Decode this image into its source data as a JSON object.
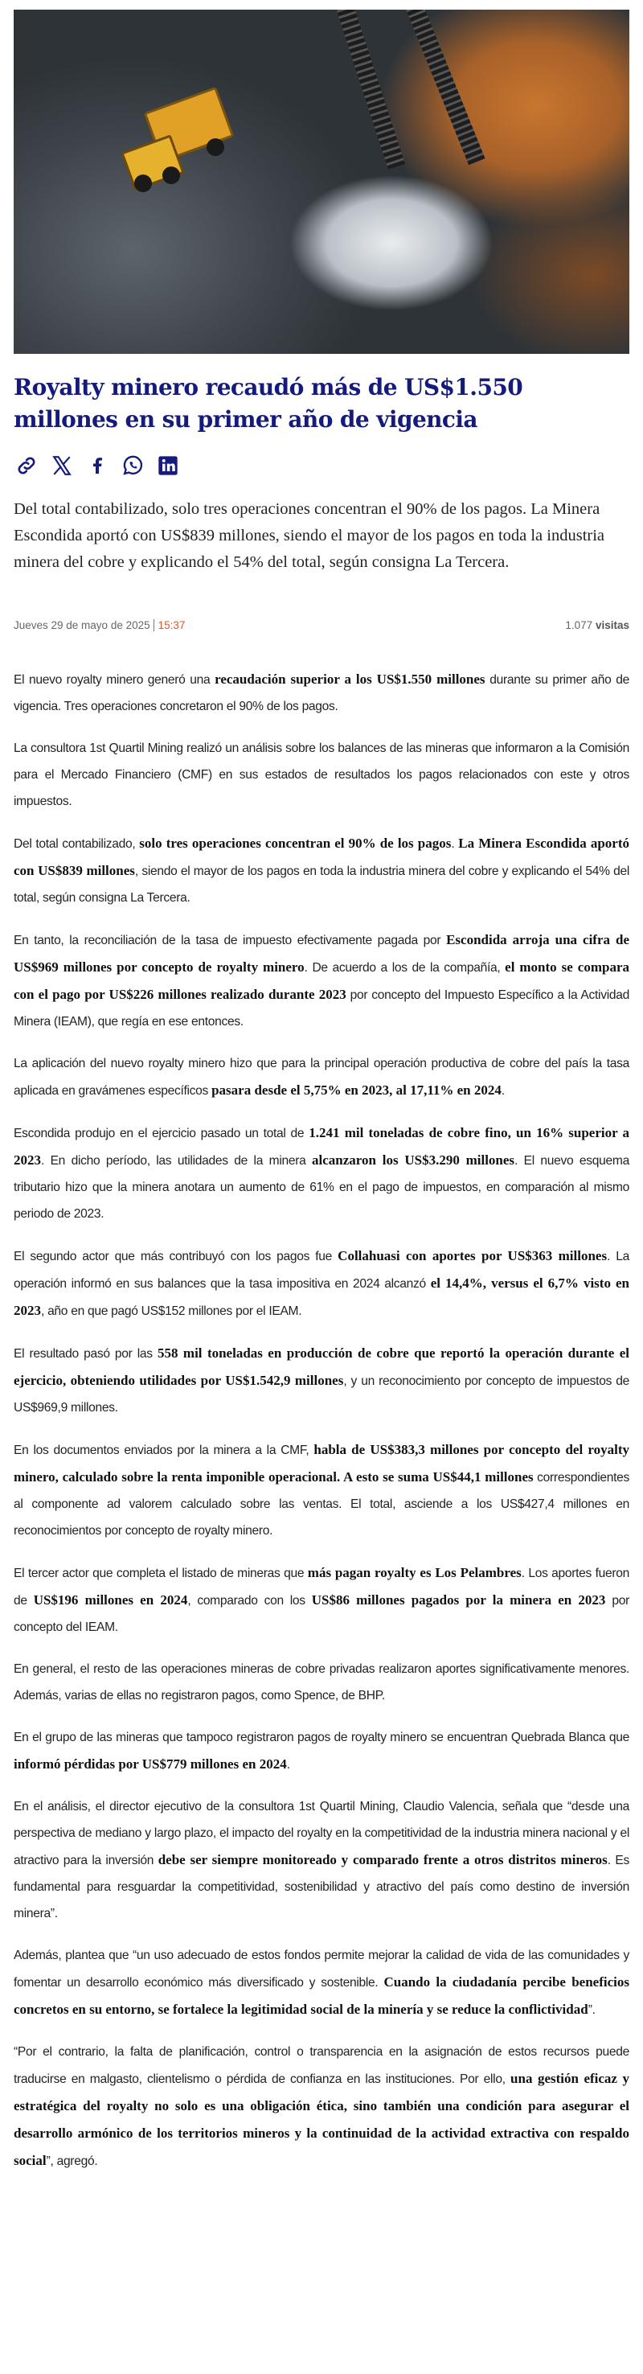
{
  "article": {
    "title": "Royalty minero recaudó más de US$1.550 millones en su primer año de vigencia",
    "lede": "Del total contabilizado, solo tres operaciones concentran el 90% de los pagos. La Minera Escondida aportó con US$839 millones, siendo el mayor de los pagos en toda la industria minera del cobre y explicando el 54% del total, según consigna La Tercera.",
    "date": "Jueves 29 de mayo de 2025",
    "time": "15:37",
    "visits_count": "1.077",
    "visits_label": "visitas"
  },
  "share_icons": [
    "link-icon",
    "x-icon",
    "facebook-icon",
    "whatsapp-icon",
    "linkedin-icon"
  ],
  "colors": {
    "title": "#141b7d",
    "time_accent": "#e8541e"
  },
  "paragraphs": [
    [
      {
        "t": "El nuevo royalty minero generó una "
      },
      {
        "t": "recaudación superior a los US$1.550 millones",
        "b": true
      },
      {
        "t": " durante su primer año de vigencia. Tres operaciones concretaron el 90% de los pagos."
      }
    ],
    [
      {
        "t": "La consultora 1st Quartil Mining realizó un análisis sobre los balances de las mineras que informaron a la Comisión para el Mercado Financiero (CMF) en sus estados de resultados los pagos relacionados con este y otros impuestos."
      }
    ],
    [
      {
        "t": "Del total contabilizado, "
      },
      {
        "t": "solo tres operaciones concentran el 90% de los pagos",
        "b": true
      },
      {
        "t": ". "
      },
      {
        "t": "La Minera Escondida aportó con US$839 millones",
        "b": true
      },
      {
        "t": ", siendo el mayor de los pagos en toda la industria minera del cobre y explicando el 54% del total, según consigna La Tercera."
      }
    ],
    [
      {
        "t": "En tanto, la reconciliación de la tasa de impuesto efectivamente pagada por "
      },
      {
        "t": "Escondida arroja una cifra de US$969 millones por concepto de royalty minero",
        "b": true
      },
      {
        "t": ". De acuerdo a los de la compañía, "
      },
      {
        "t": "el monto se compara con el pago por US$226 millones realizado durante 2023",
        "b": true
      },
      {
        "t": " por concepto del Impuesto Específico a la Actividad Minera (IEAM), que regía en ese entonces."
      }
    ],
    [
      {
        "t": "La aplicación del nuevo royalty minero hizo que para la principal operación productiva de cobre del país la tasa aplicada en gravámenes específicos "
      },
      {
        "t": "pasara desde el 5,75% en 2023, al 17,11% en 2024",
        "b": true
      },
      {
        "t": "."
      }
    ],
    [
      {
        "t": "Escondida produjo en el ejercicio pasado un total de "
      },
      {
        "t": "1.241 mil toneladas de cobre fino, un 16% superior a 2023",
        "b": true
      },
      {
        "t": ". En dicho período, las utilidades de la minera "
      },
      {
        "t": "alcanzaron los US$3.290 millones",
        "b": true
      },
      {
        "t": ". El nuevo esquema tributario hizo que la minera anotara un aumento de 61% en el pago de impuestos, en comparación al mismo periodo de 2023."
      }
    ],
    [
      {
        "t": "El segundo actor que más contribuyó con los pagos fue "
      },
      {
        "t": "Collahuasi con aportes por US$363 millones",
        "b": true
      },
      {
        "t": ". La operación informó en sus balances que la tasa impositiva en 2024 alcanzó "
      },
      {
        "t": "el 14,4%, versus el 6,7% visto en 2023",
        "b": true
      },
      {
        "t": ", año en que pagó US$152 millones por el IEAM."
      }
    ],
    [
      {
        "t": "El resultado pasó por las "
      },
      {
        "t": "558 mil toneladas en producción de cobre que reportó la operación durante el ejercicio, obteniendo utilidades por US$1.542,9 millones",
        "b": true
      },
      {
        "t": ", y un reconocimiento por concepto de impuestos de US$969,9 millones."
      }
    ],
    [
      {
        "t": "En los documentos enviados por la minera a la CMF, "
      },
      {
        "t": "habla de US$383,3 millones por concepto del royalty minero, calculado sobre la renta imponible operacional. A esto se suma US$44,1 millones",
        "b": true
      },
      {
        "t": " correspondientes al componente ad valorem calculado sobre las ventas. El total, asciende a los US$427,4 millones en reconocimientos por concepto de royalty minero."
      }
    ],
    [
      {
        "t": "El tercer actor que completa el listado de mineras que "
      },
      {
        "t": "más pagan royalty es Los Pelambres",
        "b": true
      },
      {
        "t": ". Los aportes fueron de "
      },
      {
        "t": "US$196 millones en 2024",
        "b": true
      },
      {
        "t": ", comparado con los "
      },
      {
        "t": "US$86 millones pagados por la minera en 2023",
        "b": true
      },
      {
        "t": " por concepto del IEAM."
      }
    ],
    [
      {
        "t": "En general, el resto de las operaciones mineras de cobre privadas realizaron aportes significativamente menores. Además, varias de ellas no registraron pagos, como Spence, de BHP."
      }
    ],
    [
      {
        "t": "En el grupo de las mineras que tampoco registraron pagos de royalty minero se encuentran Quebrada Blanca que "
      },
      {
        "t": "informó pérdidas por US$779 millones en 2024",
        "b": true
      },
      {
        "t": "."
      }
    ],
    [
      {
        "t": "En el análisis, el director ejecutivo de la consultora 1st Quartil Mining, Claudio Valencia, señala que “desde una perspectiva de mediano y largo plazo, el impacto del royalty en la competitividad de la industria minera nacional y el atractivo para la inversión "
      },
      {
        "t": "debe ser siempre monitoreado y comparado frente a otros distritos mineros",
        "b": true
      },
      {
        "t": ".  Es fundamental para resguardar la competitividad, sostenibilidad y atractivo del país como destino de inversión minera”."
      }
    ],
    [
      {
        "t": "Además, plantea que “un uso adecuado de estos fondos permite mejorar la calidad de vida de las comunidades y fomentar un desarrollo económico más diversificado y sostenible. "
      },
      {
        "t": "Cuando la ciudadanía percibe beneficios concretos en su entorno, se fortalece la legitimidad social de la minería y se reduce la conflictividad",
        "b": true
      },
      {
        "t": "”."
      }
    ],
    [
      {
        "t": "“Por el contrario, la falta de planificación, control o transparencia en la asignación de estos recursos puede traducirse en malgasto, clientelismo o pérdida de confianza en las instituciones. Por ello, "
      },
      {
        "t": "una gestión eficaz y estratégica del royalty no solo es una obligación ética, sino también una condición para asegurar el desarrollo armónico de los territorios mineros y la continuidad de la actividad extractiva con respaldo social",
        "b": true
      },
      {
        "t": "”, agregó."
      }
    ]
  ]
}
